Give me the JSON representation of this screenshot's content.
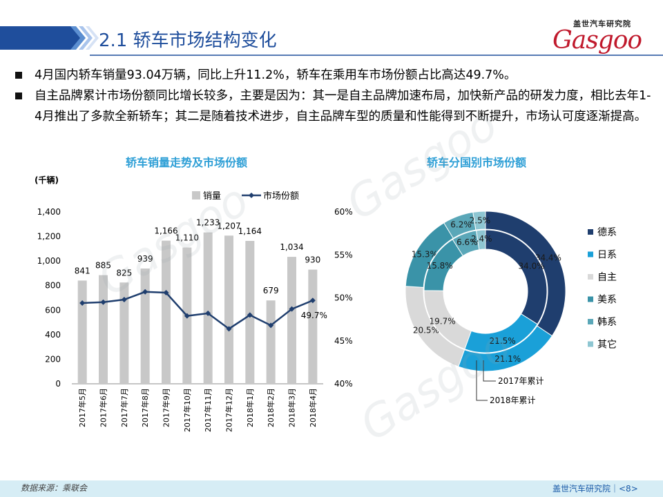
{
  "header": {
    "title": "2.1 轿车市场结构变化",
    "logo_cn": "盖世汽车研究院",
    "logo_word": "Gasgoo"
  },
  "bullets": [
    "4月国内轿车销量93.04万辆，同比上升11.2%，轿车在乘用车市场份额占比高达49.7%。",
    "自主品牌累计市场份额同比增长较多，主要是因为：其一是自主品牌加速布局，加快新产品的研发力度，相比去年1-4月推出了多款全新轿车；其二是随着技术进步，自主品牌车型的质量和性能得到不断提升，市场认可度逐渐提高。"
  ],
  "footer": {
    "source": "数据来源：乘联会",
    "org": "盖世汽车研究院｜<8>"
  },
  "chart_data": [
    {
      "type": "bar",
      "title": "轿车销量走势及市场份额",
      "unit_label": "(千辆)",
      "categories": [
        "2017年5月",
        "2017年6月",
        "2017年7月",
        "2017年8月",
        "2017年9月",
        "2017年10月",
        "2017年11月",
        "2017年12月",
        "2018年1月",
        "2018年2月",
        "2018年3月",
        "2018年4月"
      ],
      "series": [
        {
          "name": "销量",
          "type": "bar",
          "color": "#c8c8c8",
          "values": [
            841,
            885,
            825,
            939,
            1166,
            1110,
            1233,
            1207,
            1164,
            679,
            1034,
            930
          ],
          "value_labels": [
            "841",
            "885",
            "825",
            "939",
            "1,166",
            "1,110",
            "1,233",
            "1,207",
            "1,164",
            "679",
            "1,034",
            "930"
          ]
        },
        {
          "name": "市场份额",
          "type": "line",
          "color": "#1f3e6e",
          "axis": "right",
          "values": [
            49.4,
            49.5,
            49.8,
            50.7,
            50.6,
            47.9,
            48.2,
            46.4,
            48.0,
            46.8,
            48.7,
            49.7
          ],
          "labeled_value": "49.7%"
        }
      ],
      "ylim": [
        0,
        1400
      ],
      "yticks": [
        "0",
        "200",
        "400",
        "600",
        "800",
        "1,000",
        "1,200",
        "1,400"
      ],
      "y2lim": [
        40,
        60
      ],
      "y2ticks": [
        "40%",
        "45%",
        "50%",
        "55%",
        "60%"
      ],
      "legend": "top",
      "grid": false
    },
    {
      "type": "pie",
      "title": "轿车分国别市场份额",
      "donut": true,
      "categories": [
        "德系",
        "日系",
        "自主",
        "美系",
        "韩系",
        "其它"
      ],
      "colors": [
        "#1f3e6e",
        "#1aa0d8",
        "#d9d9d9",
        "#3a93a8",
        "#5aa7b8",
        "#8ec6d2"
      ],
      "rings": [
        {
          "name": "2017年累计",
          "position": "outer",
          "values": [
            34.4,
            21.1,
            20.5,
            15.3,
            6.2,
            2.5
          ],
          "labels": [
            "34.4%",
            "21.1%",
            "20.5%",
            "15.3%",
            "6.2%",
            "2.5%"
          ]
        },
        {
          "name": "2018年累计",
          "position": "inner",
          "values": [
            34.0,
            21.5,
            19.7,
            15.8,
            6.6,
            2.4
          ],
          "labels": [
            "34.0%",
            "21.5%",
            "19.7%",
            "15.8%",
            "6.6%",
            "2.4%"
          ]
        }
      ],
      "legend": "right"
    }
  ]
}
